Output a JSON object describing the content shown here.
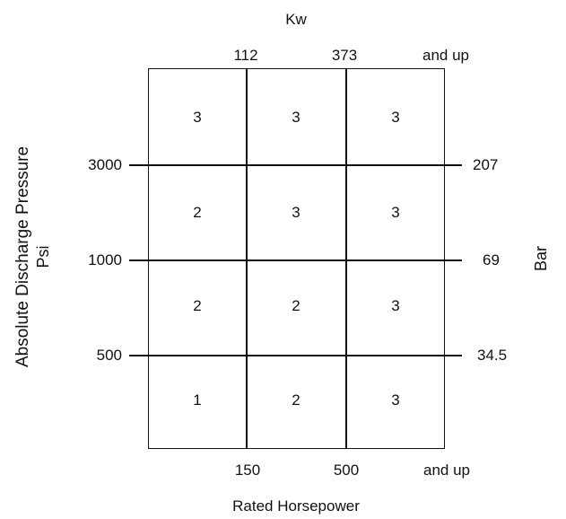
{
  "top_axis": {
    "title": "Kw",
    "ticks": [
      "112",
      "373",
      "and up"
    ]
  },
  "bottom_axis": {
    "title": "Rated Horsepower",
    "ticks": [
      "150",
      "500",
      "and up"
    ]
  },
  "left_axis": {
    "title": "Absolute Discharge Pressure",
    "unit": "Psi",
    "ticks": [
      "3000",
      "1000",
      "500"
    ]
  },
  "right_axis": {
    "title": "Bar",
    "ticks": [
      "207",
      "69",
      "34.5"
    ]
  },
  "grid": {
    "rows": [
      [
        "3",
        "3",
        "3"
      ],
      [
        "2",
        "3",
        "3"
      ],
      [
        "2",
        "2",
        "3"
      ],
      [
        "1",
        "2",
        "3"
      ]
    ]
  }
}
